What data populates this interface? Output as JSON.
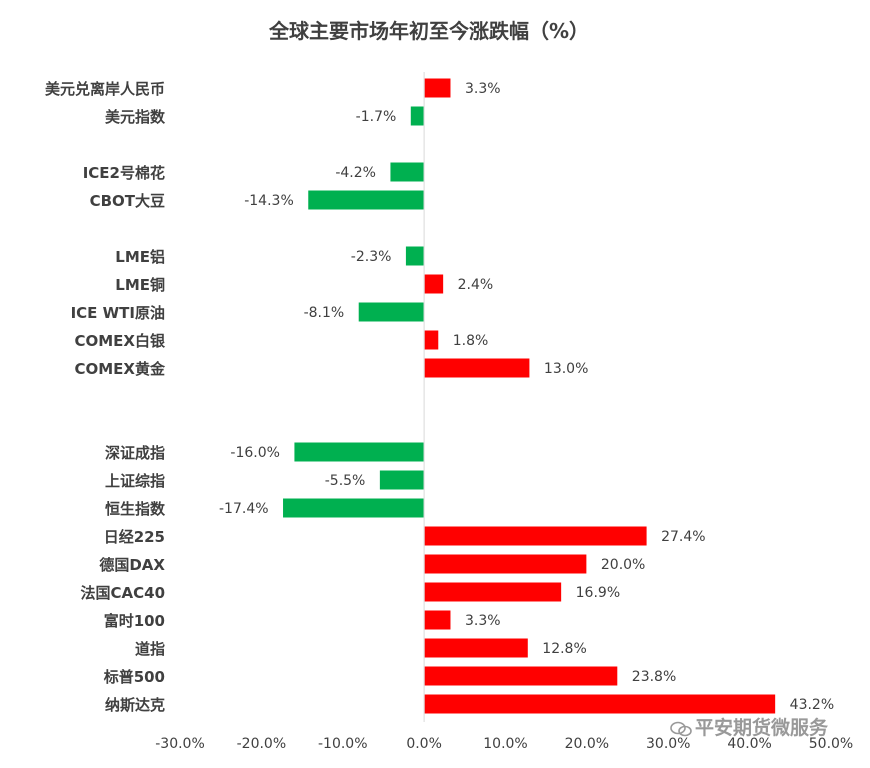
{
  "chart_data": {
    "type": "bar",
    "orientation": "horizontal",
    "title": "全球主要市场年初至今涨跌幅（%）",
    "categories": [
      "美元兑离岸人民币",
      "美元指数",
      "ICE2号棉花",
      "CBOT大豆",
      "LME铝",
      "LME铜",
      "ICE WTI原油",
      "COMEX白银",
      "COMEX黄金",
      "深证成指",
      "上证综指",
      "恒生指数",
      "日经225",
      "德国DAX",
      "法国CAC40",
      "富时100",
      "道指",
      "标普500",
      "纳斯达克"
    ],
    "values": [
      3.3,
      -1.7,
      -4.2,
      -14.3,
      -2.3,
      2.4,
      -8.1,
      1.8,
      13.0,
      -16.0,
      -5.5,
      -17.4,
      27.4,
      20.0,
      16.9,
      3.3,
      12.8,
      23.8,
      43.2
    ],
    "value_labels": [
      "3.3%",
      "-1.7%",
      "-4.2%",
      "-14.3%",
      "-2.3%",
      "2.4%",
      "-8.1%",
      "1.8%",
      "13.0%",
      "-16.0%",
      "-5.5%",
      "-17.4%",
      "27.4%",
      "20.0%",
      "16.9%",
      "3.3%",
      "12.8%",
      "23.8%",
      "43.2%"
    ],
    "xlim": [
      -30,
      50
    ],
    "x_ticks": [
      "-30.0%",
      "-20.0%",
      "-10.0%",
      "0.0%",
      "10.0%",
      "20.0%",
      "30.0%",
      "40.0%",
      "50.0%"
    ],
    "positive_color": "#ff0000",
    "negative_color": "#00b050",
    "grid": false,
    "legend": "none"
  },
  "watermark": "平安期货微服务"
}
